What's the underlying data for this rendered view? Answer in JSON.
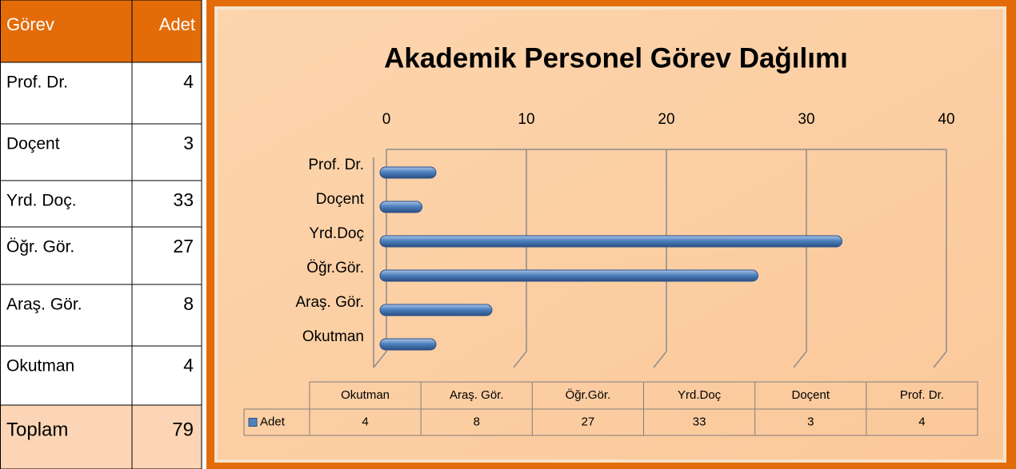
{
  "table": {
    "header": [
      "Görev",
      "Adet"
    ],
    "rows": [
      [
        "Prof. Dr.",
        "4"
      ],
      [
        "Doçent",
        "3"
      ],
      [
        "Yrd. Doç.",
        "33"
      ],
      [
        "Öğr. Gör.",
        "27"
      ],
      [
        "Araş. Gör.",
        "8"
      ],
      [
        "Okutman",
        "4"
      ]
    ],
    "total": [
      "Toplam",
      "79"
    ]
  },
  "chart_data": {
    "type": "bar",
    "orientation": "horizontal",
    "title": "Akademik Personel Görev Dağılımı",
    "categories": [
      "Okutman",
      "Araş. Gör.",
      "Öğr.Gör.",
      "Yrd.Doç",
      "Doçent",
      "Prof. Dr."
    ],
    "series": [
      {
        "name": "Adet",
        "color": "#4f81bd",
        "values": [
          4,
          8,
          27,
          33,
          3,
          4
        ]
      }
    ],
    "xlim": [
      0,
      40
    ],
    "xticks": [
      0,
      10,
      20,
      30,
      40
    ],
    "grid": true,
    "data_table": true
  }
}
